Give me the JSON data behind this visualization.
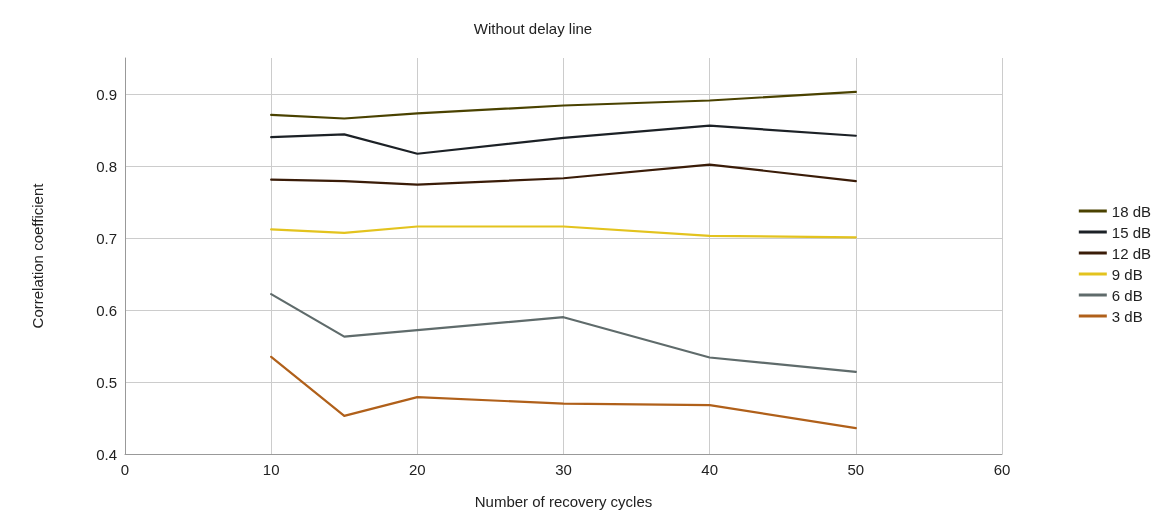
{
  "chart_data": {
    "type": "line",
    "title": "Without delay line",
    "xlabel": "Number of recovery cycles",
    "ylabel": "Correlation coefficient",
    "x": [
      10,
      15,
      20,
      30,
      40,
      50
    ],
    "xlim": [
      0,
      60
    ],
    "xticks": [
      0,
      10,
      20,
      30,
      40,
      50,
      60
    ],
    "ylim": [
      0.4,
      0.95
    ],
    "yticks": [
      0.4,
      0.5,
      0.6,
      0.7,
      0.8,
      0.9
    ],
    "grid": true,
    "legend": "right",
    "marker": "none",
    "line_style": "solid",
    "series": [
      {
        "name": "18 dB",
        "color": "#4a4200",
        "values": [
          0.871,
          0.866,
          0.873,
          0.884,
          0.891,
          0.903
        ]
      },
      {
        "name": "15 dB",
        "color": "#1c2126",
        "values": [
          0.84,
          0.844,
          0.817,
          0.839,
          0.856,
          0.842
        ]
      },
      {
        "name": "12 dB",
        "color": "#3a1c08",
        "values": [
          0.781,
          0.779,
          0.774,
          0.783,
          0.802,
          0.779
        ]
      },
      {
        "name": "9 dB",
        "color": "#e3c31e",
        "values": [
          0.712,
          0.707,
          0.716,
          0.716,
          0.703,
          0.701
        ]
      },
      {
        "name": "6 dB",
        "color": "#5f6b6b",
        "values": [
          0.622,
          0.563,
          0.572,
          0.59,
          0.534,
          0.514
        ]
      },
      {
        "name": "3 dB",
        "color": "#b0601a",
        "values": [
          0.535,
          0.453,
          0.479,
          0.47,
          0.468,
          0.436
        ]
      }
    ]
  }
}
